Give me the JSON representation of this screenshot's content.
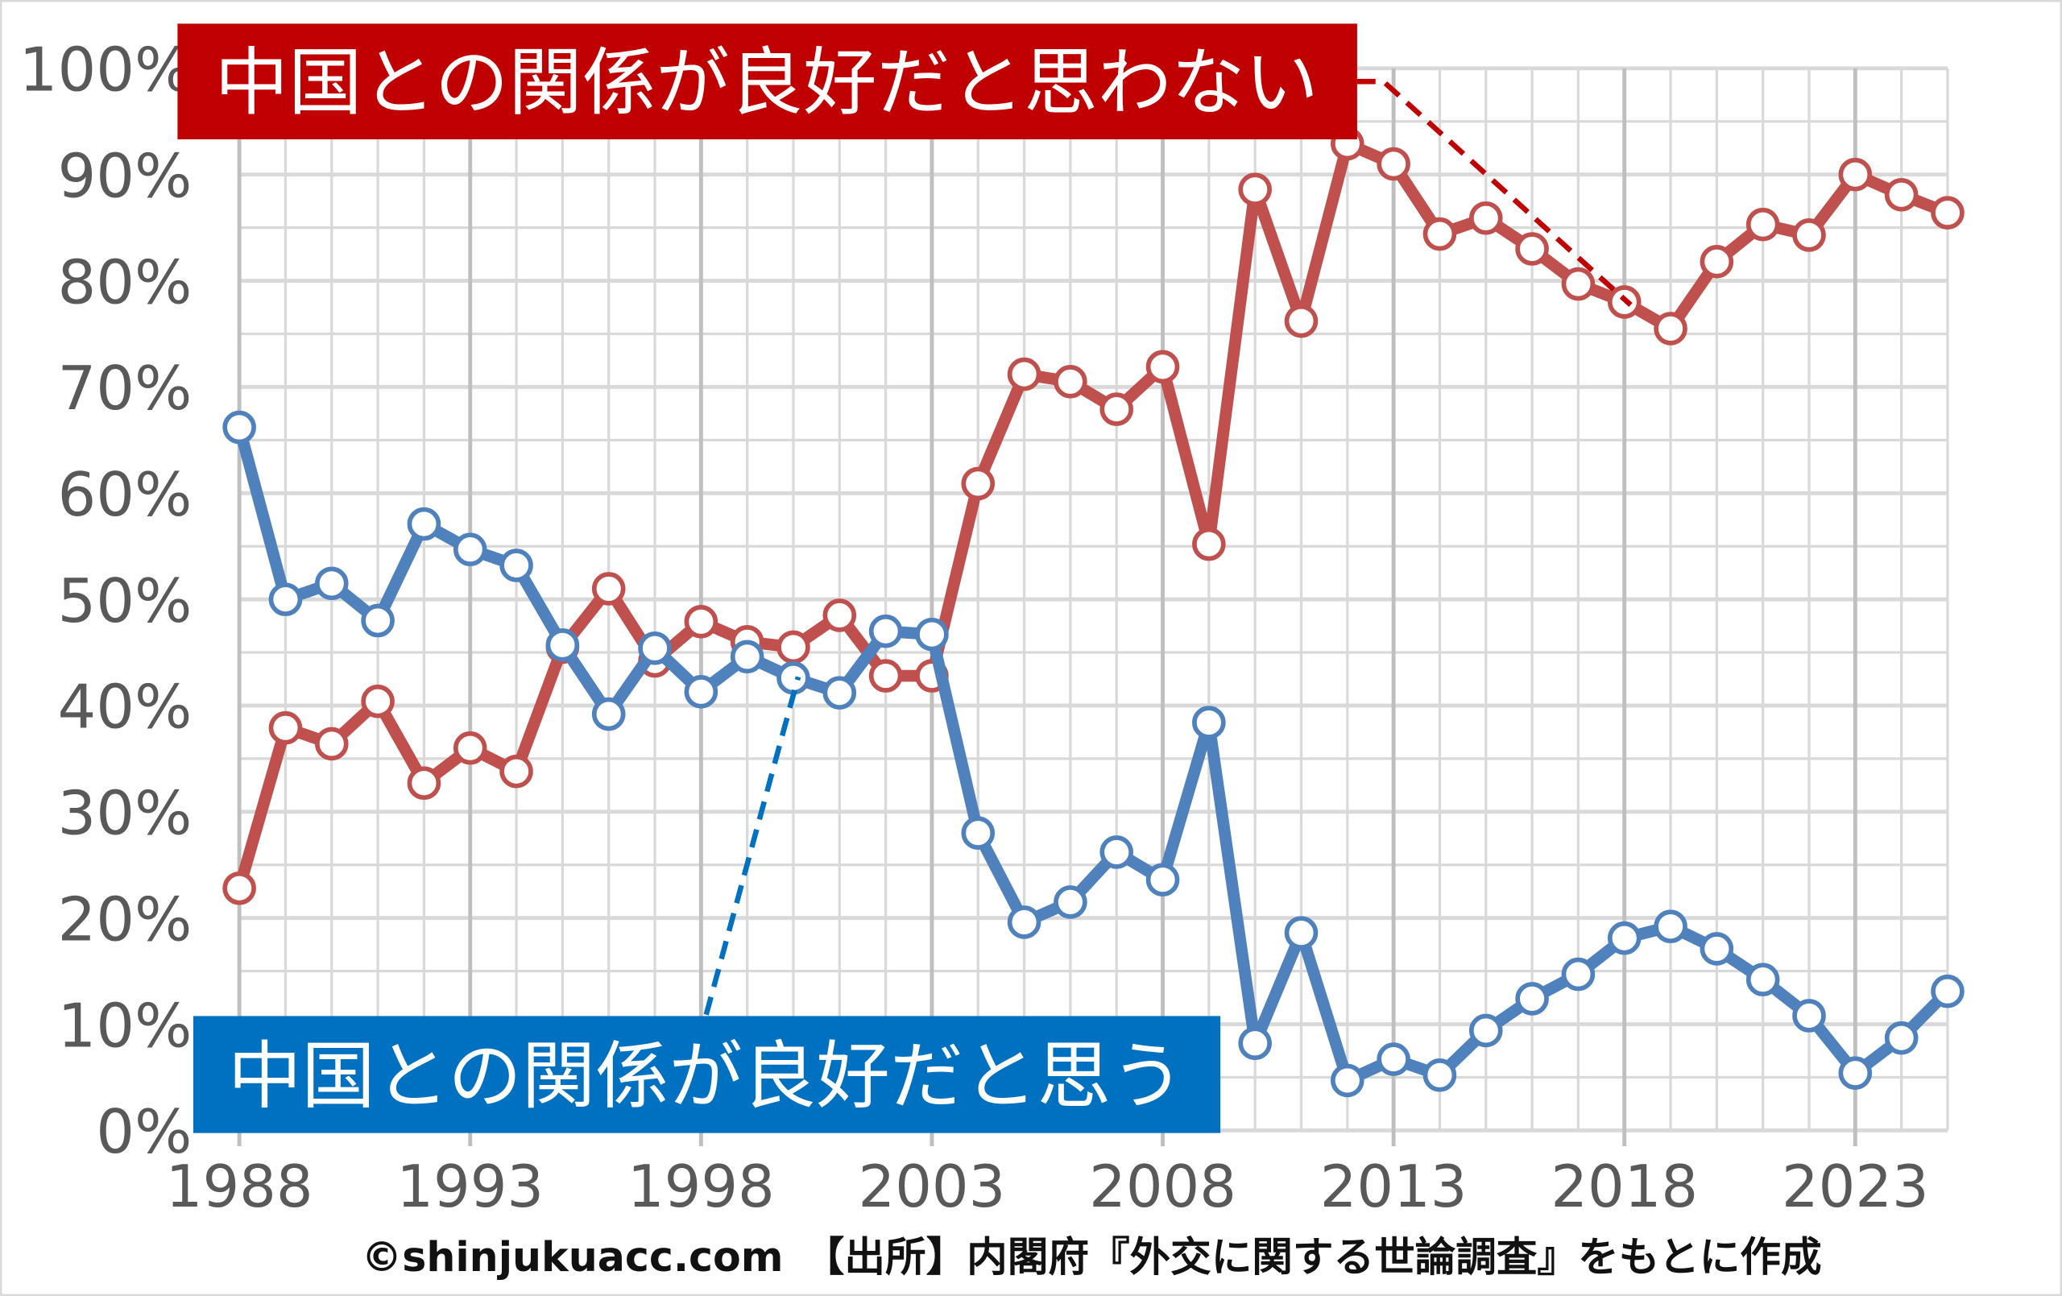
{
  "chart_data": {
    "type": "line",
    "x": [
      1988,
      1989,
      1990,
      1991,
      1992,
      1993,
      1994,
      1995,
      1996,
      1997,
      1998,
      1999,
      2000,
      2001,
      2002,
      2003,
      2004,
      2005,
      2006,
      2007,
      2008,
      2009,
      2010,
      2011,
      2012,
      2013,
      2014,
      2015,
      2016,
      2017,
      2018,
      2019,
      2020,
      2021,
      2022,
      2023,
      2024,
      2025
    ],
    "series": [
      {
        "name": "中国との関係が良好だと思わない",
        "color": "#c0504d",
        "values": [
          22.8,
          37.9,
          36.4,
          40.4,
          32.7,
          36.0,
          33.8,
          45.5,
          51.0,
          44.2,
          47.9,
          46.0,
          45.5,
          48.5,
          42.8,
          42.8,
          60.9,
          71.2,
          70.5,
          67.9,
          71.9,
          55.2,
          88.6,
          76.2,
          92.9,
          91.0,
          84.4,
          85.9,
          83.0,
          79.7,
          78.0,
          75.5,
          81.8,
          85.3,
          84.3,
          90.0,
          88.1,
          86.4
        ]
      },
      {
        "name": "中国との関係が良好だと思う",
        "color": "#4f81bd",
        "values": [
          66.2,
          50.0,
          51.5,
          48.0,
          57.1,
          54.7,
          53.2,
          45.7,
          39.2,
          45.4,
          41.3,
          44.6,
          42.6,
          41.2,
          47.0,
          46.7,
          28.0,
          19.6,
          21.5,
          26.2,
          23.6,
          38.4,
          8.2,
          18.6,
          4.7,
          6.7,
          5.2,
          9.4,
          12.4,
          14.7,
          18.1,
          19.2,
          17.1,
          14.2,
          10.8,
          5.4,
          8.7,
          13.1
        ]
      }
    ],
    "xticks": [
      "1988",
      "1993",
      "1998",
      "2003",
      "2008",
      "2013",
      "2018",
      "2023"
    ],
    "yticks": [
      "0%",
      "10%",
      "20%",
      "30%",
      "40%",
      "50%",
      "60%",
      "70%",
      "80%",
      "90%",
      "100%"
    ],
    "ylim": [
      0,
      100
    ],
    "xlim": [
      1988,
      2025
    ],
    "grid": true,
    "legend_labels": {
      "negative": {
        "text": "中国との関係が良好だと思わない",
        "bg": "#c00000"
      },
      "positive": {
        "text": "中国との関係が良好だと思う",
        "bg": "#0070c0"
      }
    },
    "caption": "©shinjukuacc.com　【出所】内閣府『外交に関する世論調査』をもとに作成"
  }
}
